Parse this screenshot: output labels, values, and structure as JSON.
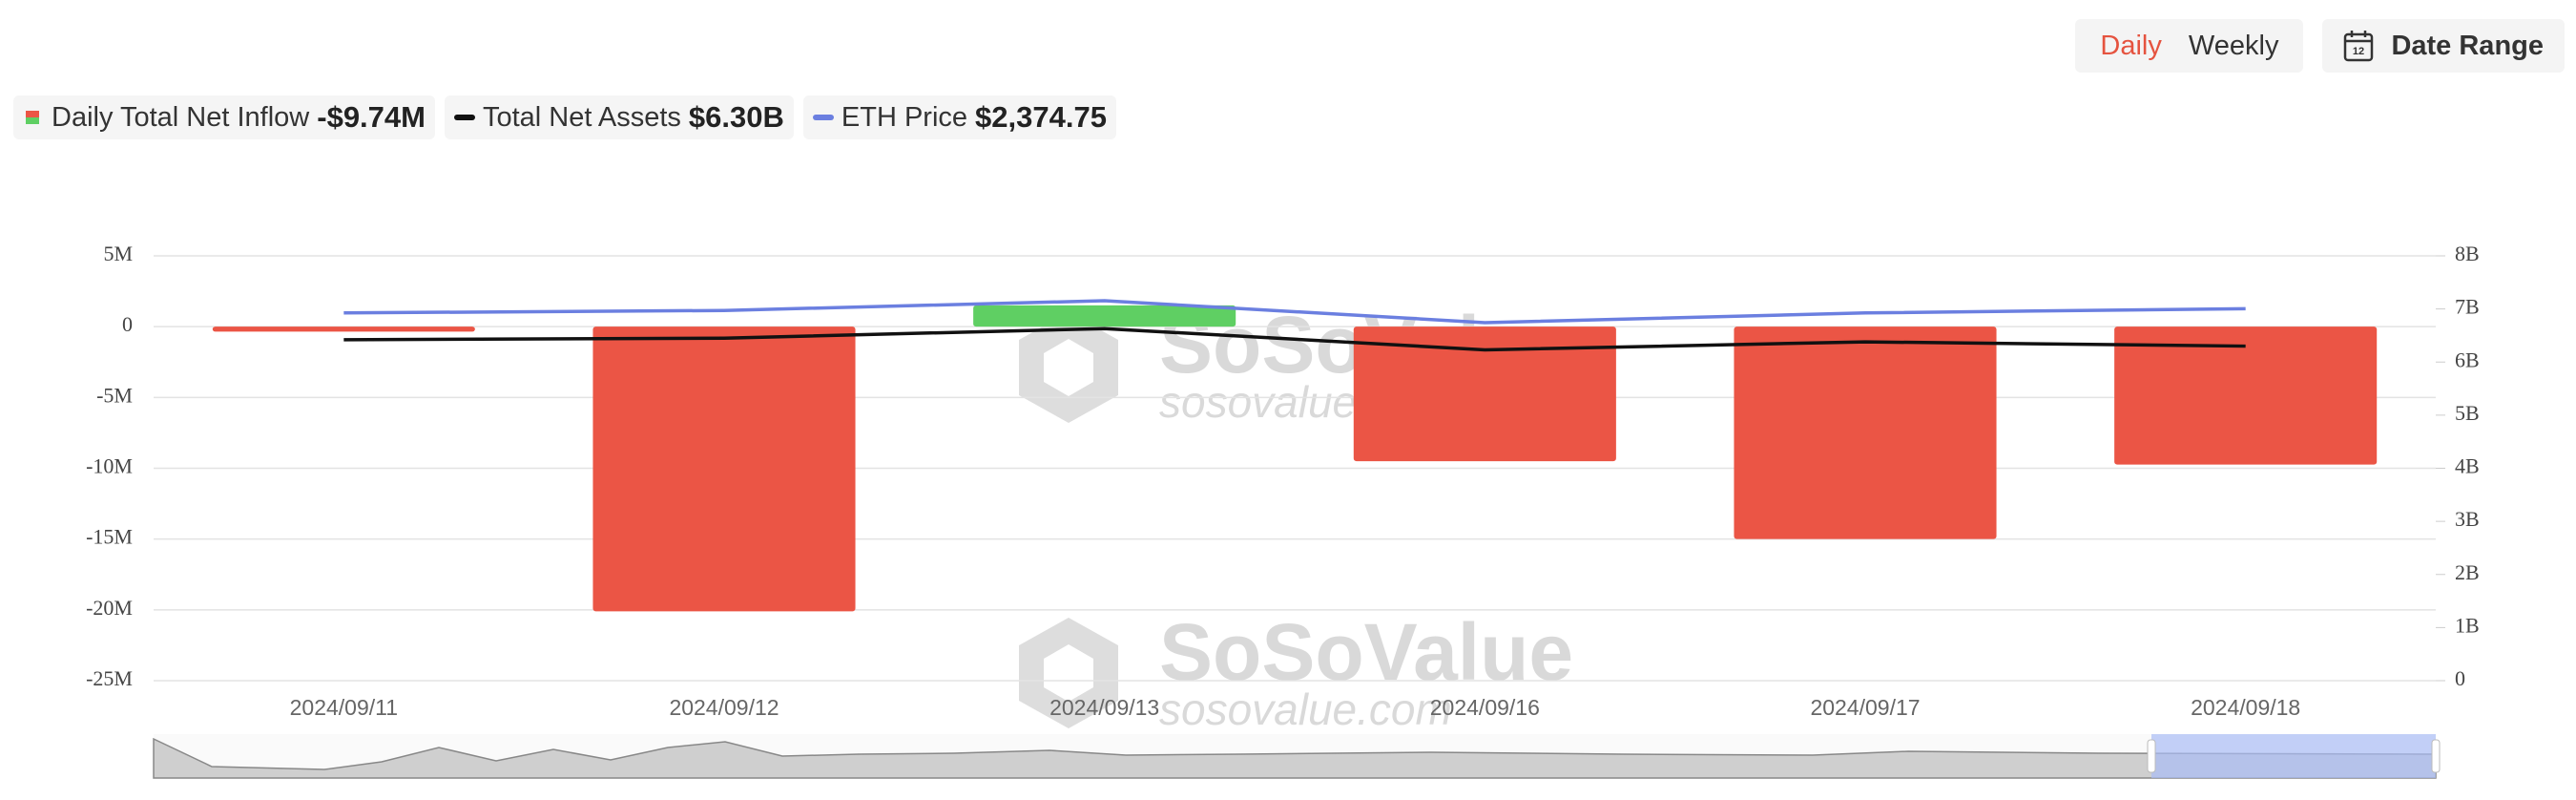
{
  "controls": {
    "daily": "Daily",
    "weekly": "Weekly",
    "date_range": "Date Range"
  },
  "watermark": {
    "brand": "SoSoValue",
    "url": "sosovalue.com"
  },
  "chart_data": {
    "type": "bar",
    "categories": [
      "2024/09/11",
      "2024/09/12",
      "2024/09/13",
      "2024/09/16",
      "2024/09/17",
      "2024/09/18"
    ],
    "ylim": [
      -25,
      5
    ],
    "yticks": [
      {
        "value": 5,
        "label": "5M"
      },
      0,
      {
        "value": -5,
        "label": "-5M"
      },
      {
        "value": -10,
        "label": "-10M"
      },
      {
        "value": -15,
        "label": "-15M"
      },
      {
        "value": -20,
        "label": "-20M"
      },
      {
        "value": -25,
        "label": "-25M"
      }
    ],
    "y2lim": [
      0,
      8
    ],
    "y2ticks": [
      {
        "value": 8,
        "label": "8B"
      },
      {
        "value": 7,
        "label": "7B"
      },
      {
        "value": 6,
        "label": "6B"
      },
      {
        "value": 5,
        "label": "5B"
      },
      {
        "value": 4,
        "label": "4B"
      },
      {
        "value": 3,
        "label": "3B"
      },
      {
        "value": 2,
        "label": "2B"
      },
      {
        "value": 1,
        "label": "1B"
      },
      0
    ],
    "grid": true,
    "positive_color": "#5fcf63",
    "negative_color": "#eb5545",
    "series": [
      {
        "name": "Daily Total Net Inflow",
        "type": "bar",
        "axis": "y",
        "legend_value": "-$9.74M",
        "color": "#eb5545",
        "values": [
          -0.35,
          -20.1,
          1.5,
          -9.5,
          -15.0,
          -9.74
        ]
      },
      {
        "name": "Total Net Assets",
        "type": "line",
        "axis": "y2",
        "legend_value": "$6.30B",
        "color": "#111111",
        "values": [
          6.42,
          6.45,
          6.63,
          6.23,
          6.38,
          6.3
        ]
      },
      {
        "name": "ETH Price",
        "type": "line",
        "axis": "hidden",
        "legend_value": "$2,374.75",
        "color": "#6b7fe0",
        "values": [
          2340,
          2360,
          2440,
          2260,
          2340,
          2374.75
        ]
      }
    ]
  }
}
